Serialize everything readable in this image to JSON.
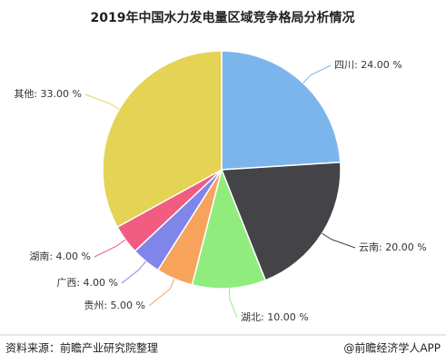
{
  "chart_data": {
    "type": "pie",
    "title": "2019年中国水力发电量区域竞争格局分析情况",
    "categories": [
      "四川:",
      "云南:",
      "湖北:",
      "贵州:",
      "广西:",
      "湖南:",
      "其他:"
    ],
    "values": [
      24,
      20,
      10,
      5,
      4,
      4,
      33
    ],
    "value_labels": [
      "24.00 %",
      "20.00 %",
      "10.00 %",
      "5.00 %",
      "4.00 %",
      "4.00 %",
      "33.00 %"
    ],
    "colors": [
      "#7cb5ec",
      "#434348",
      "#90ed7d",
      "#f7a35c",
      "#8085e9",
      "#f15c80",
      "#e4d354"
    ],
    "source": "资料来源：前瞻产业研究院整理",
    "brand": "@前瞻经济学人APP"
  }
}
